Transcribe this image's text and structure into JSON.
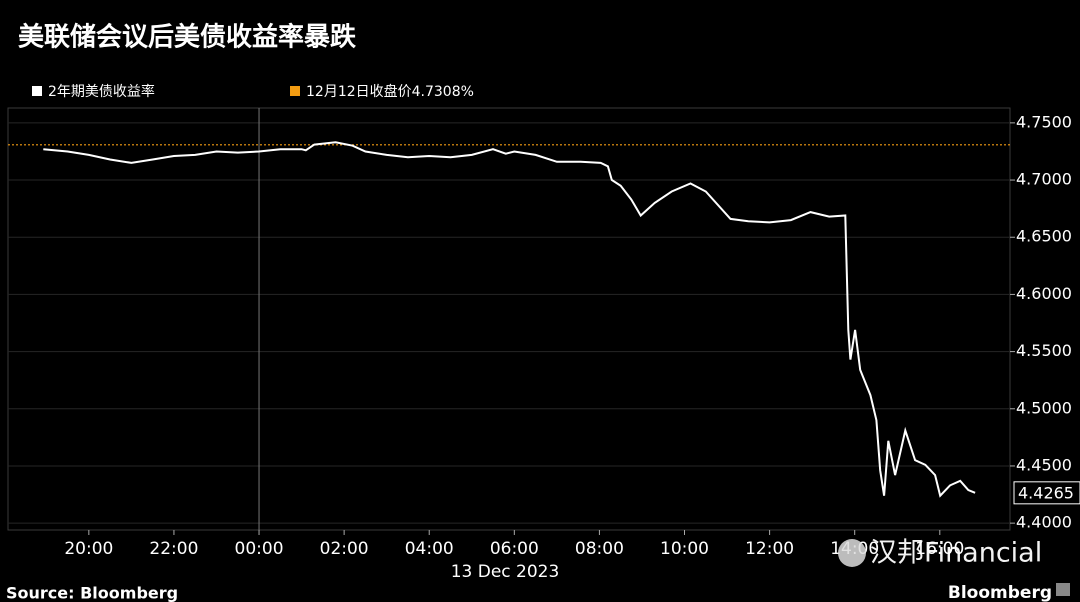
{
  "chart_data": {
    "type": "line",
    "title": "美联储会议后美债收益率暴跌",
    "xlabel": "13 Dec 2023",
    "source": "Source: Bloomberg",
    "brand": "Bloomberg",
    "watermark": "汉邦Financial",
    "xlim": [
      -5.9,
      17.65
    ],
    "xticks": [
      {
        "value": -4,
        "label": "20:00"
      },
      {
        "value": -2,
        "label": "22:00"
      },
      {
        "value": 0,
        "label": "00:00"
      },
      {
        "value": 2,
        "label": "02:00"
      },
      {
        "value": 4,
        "label": "04:00"
      },
      {
        "value": 6,
        "label": "06:00"
      },
      {
        "value": 8,
        "label": "08:00"
      },
      {
        "value": 10,
        "label": "10:00"
      },
      {
        "value": 12,
        "label": "12:00"
      },
      {
        "value": 14,
        "label": "14:00"
      },
      {
        "value": 16,
        "label": "16:00"
      }
    ],
    "ylim": [
      4.394,
      4.763
    ],
    "yticks": [
      {
        "value": 4.4,
        "label": "4.4000"
      },
      {
        "value": 4.45,
        "label": "4.4500"
      },
      {
        "value": 4.5,
        "label": "4.5000"
      },
      {
        "value": 4.55,
        "label": "4.5500"
      },
      {
        "value": 4.6,
        "label": "4.6000"
      },
      {
        "value": 4.65,
        "label": "4.6500"
      },
      {
        "value": 4.7,
        "label": "4.7000"
      },
      {
        "value": 4.75,
        "label": "4.7500"
      }
    ],
    "grid": true,
    "x": [
      -5.07,
      -4.5,
      -4,
      -3.5,
      -3,
      -2.5,
      -2,
      -1.5,
      -1,
      -0.5,
      0,
      0.5,
      1,
      1.1,
      1.3,
      1.8,
      2.2,
      2.5,
      3,
      3.5,
      4,
      4.5,
      5,
      5.5,
      5.8,
      6,
      6.5,
      7,
      7.56,
      8.03,
      8.2,
      8.29,
      8.5,
      8.75,
      8.97,
      9.3,
      9.7,
      10.14,
      10.5,
      11.08,
      11.5,
      12.0,
      12.5,
      12.96,
      13.4,
      13.78,
      13.85,
      13.9,
      14.01,
      14.13,
      14.37,
      14.51,
      14.6,
      14.69,
      14.79,
      14.95,
      15.19,
      15.42,
      15.66,
      15.89,
      16.01,
      16.24,
      16.48,
      16.67,
      16.83
    ],
    "series": [
      {
        "name": "2年期美债收益率",
        "color": "#ffffff",
        "values": [
          4.727,
          4.725,
          4.722,
          4.718,
          4.715,
          4.718,
          4.721,
          4.722,
          4.725,
          4.724,
          4.725,
          4.727,
          4.727,
          4.726,
          4.731,
          4.733,
          4.73,
          4.725,
          4.722,
          4.72,
          4.721,
          4.72,
          4.722,
          4.727,
          4.723,
          4.725,
          4.722,
          4.716,
          4.716,
          4.715,
          4.712,
          4.7,
          4.695,
          4.683,
          4.669,
          4.68,
          4.69,
          4.697,
          4.69,
          4.666,
          4.664,
          4.663,
          4.665,
          4.672,
          4.668,
          4.669,
          4.569,
          4.543,
          4.569,
          4.534,
          4.512,
          4.49,
          4.446,
          4.424,
          4.472,
          4.442,
          4.481,
          4.455,
          4.451,
          4.442,
          4.424,
          4.433,
          4.437,
          4.429,
          4.4265
        ]
      }
    ],
    "reference_line": {
      "name": "12月12日收盘价4.7308%",
      "value": 4.7308,
      "color": "#f39c12"
    },
    "last_label": {
      "value": 4.4265,
      "label": "4.4265"
    }
  }
}
